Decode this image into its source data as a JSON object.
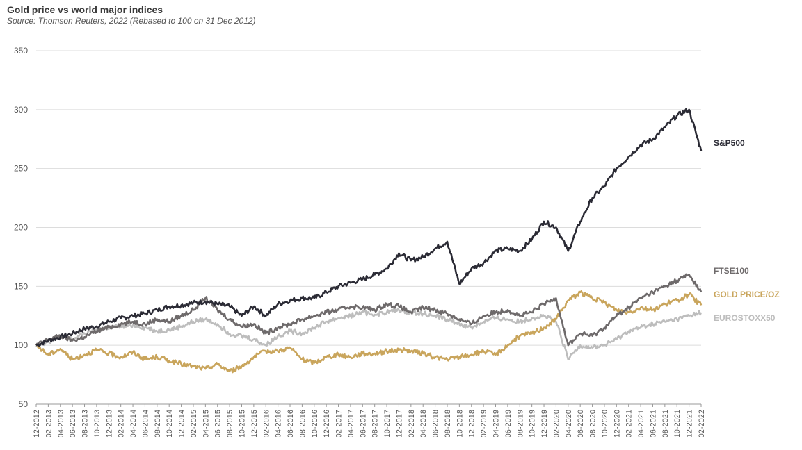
{
  "chart_data": {
    "type": "line",
    "title": "Gold price vs world major indices",
    "subtitle": "Source: Thomson Reuters, 2022 (Rebased to 100 on 31 Dec 2012)",
    "ylim": [
      50,
      350
    ],
    "yticks": [
      50,
      100,
      150,
      200,
      250,
      300,
      350
    ],
    "grid": true,
    "legend": "right",
    "x": [
      "12-2012",
      "02-2013",
      "04-2013",
      "06-2013",
      "08-2013",
      "10-2013",
      "12-2013",
      "02-2014",
      "04-2014",
      "06-2014",
      "08-2014",
      "10-2014",
      "12-2014",
      "02-2015",
      "04-2015",
      "06-2015",
      "08-2015",
      "10-2015",
      "12-2015",
      "02-2016",
      "04-2016",
      "06-2016",
      "08-2016",
      "10-2016",
      "12-2016",
      "02-2017",
      "04-2017",
      "06-2017",
      "08-2017",
      "10-2017",
      "12-2017",
      "02-2018",
      "04-2018",
      "06-2018",
      "08-2018",
      "10-2018",
      "12-2018",
      "02-2019",
      "04-2019",
      "06-2019",
      "08-2019",
      "10-2019",
      "12-2019",
      "02-2020",
      "04-2020",
      "06-2020",
      "08-2020",
      "10-2020",
      "12-2020",
      "02-2021",
      "04-2021",
      "06-2021",
      "08-2021",
      "10-2021",
      "12-2021",
      "02-2022"
    ],
    "series": [
      {
        "name": "S&P500",
        "color": "#2b2b35",
        "values": [
          100,
          104,
          107,
          110,
          114,
          116,
          120,
          123,
          125,
          127,
          130,
          133,
          134,
          136,
          137,
          135,
          133,
          125,
          133,
          125,
          135,
          138,
          140,
          140,
          145,
          150,
          153,
          156,
          160,
          165,
          178,
          172,
          175,
          182,
          188,
          152,
          165,
          170,
          180,
          182,
          180,
          190,
          205,
          200,
          180,
          205,
          225,
          235,
          250,
          260,
          270,
          275,
          285,
          295,
          300,
          265
        ]
      },
      {
        "name": "FTSE100",
        "color": "#6e6a6b",
        "values": [
          100,
          105,
          108,
          104,
          107,
          112,
          115,
          118,
          120,
          118,
          122,
          120,
          125,
          130,
          140,
          130,
          122,
          116,
          118,
          110,
          115,
          118,
          122,
          125,
          128,
          130,
          133,
          132,
          130,
          135,
          133,
          128,
          132,
          130,
          127,
          122,
          118,
          125,
          128,
          130,
          125,
          128,
          135,
          140,
          100,
          110,
          108,
          115,
          125,
          132,
          140,
          145,
          150,
          155,
          160,
          145
        ]
      },
      {
        "name": "GOLD PRICE/OZ",
        "color": "#c9a55c",
        "values": [
          100,
          92,
          97,
          88,
          92,
          96,
          93,
          90,
          94,
          88,
          90,
          87,
          84,
          82,
          80,
          84,
          78,
          82,
          90,
          95,
          95,
          98,
          88,
          85,
          90,
          92,
          90,
          93,
          93,
          95,
          96,
          95,
          93,
          90,
          88,
          90,
          92,
          95,
          92,
          100,
          108,
          110,
          115,
          122,
          138,
          145,
          140,
          136,
          130,
          128,
          132,
          130,
          135,
          138,
          143,
          134
        ]
      },
      {
        "name": "EUROSTOXX50",
        "color": "#bdbdbd",
        "values": [
          100,
          103,
          108,
          105,
          110,
          113,
          115,
          116,
          117,
          115,
          112,
          113,
          116,
          120,
          122,
          118,
          110,
          108,
          105,
          100,
          108,
          112,
          110,
          115,
          120,
          123,
          125,
          128,
          126,
          128,
          130,
          128,
          127,
          125,
          122,
          118,
          115,
          120,
          123,
          122,
          120,
          123,
          125,
          120,
          88,
          100,
          98,
          100,
          105,
          112,
          115,
          118,
          120,
          122,
          125,
          128
        ]
      }
    ]
  }
}
